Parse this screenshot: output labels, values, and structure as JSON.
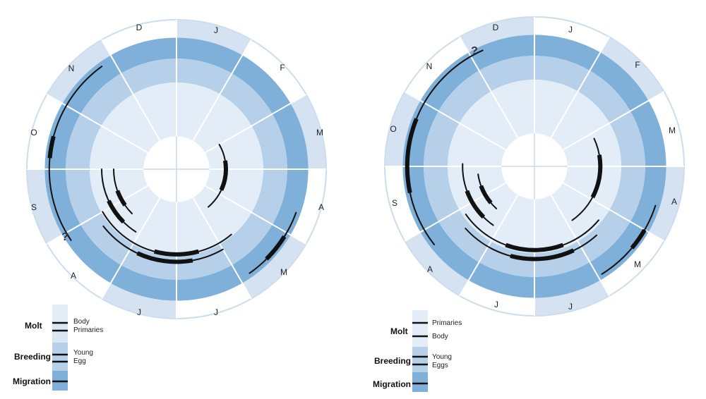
{
  "colors": {
    "ring_outer": "#d4e2f1",
    "ring_migration": "#7fb0da",
    "ring_breeding": "#b6d0ea",
    "ring_molt": "#e3edf7",
    "divider": "#ffffff",
    "track": "#111111"
  },
  "diagrams": [
    {
      "months": [
        "J",
        "F",
        "M",
        "A",
        "M",
        "J",
        "J",
        "A",
        "S",
        "O",
        "N",
        "D"
      ],
      "question_mark": "?",
      "legend": {
        "molt": "Molt",
        "body": "Body",
        "primaries": "Primaries",
        "breeding": "Breeding",
        "young": "Young",
        "egg": "Egg",
        "migration": "Migration"
      }
    },
    {
      "months": [
        "J",
        "F",
        "M",
        "A",
        "M",
        "J",
        "J",
        "A",
        "S",
        "O",
        "N",
        "D"
      ],
      "question_mark": "?",
      "legend": {
        "molt": "Molt",
        "primaries": "Primaries",
        "body": "Body",
        "breeding": "Breeding",
        "young": "Young",
        "eggs": "Eggs",
        "migration": "Migration"
      }
    }
  ]
}
